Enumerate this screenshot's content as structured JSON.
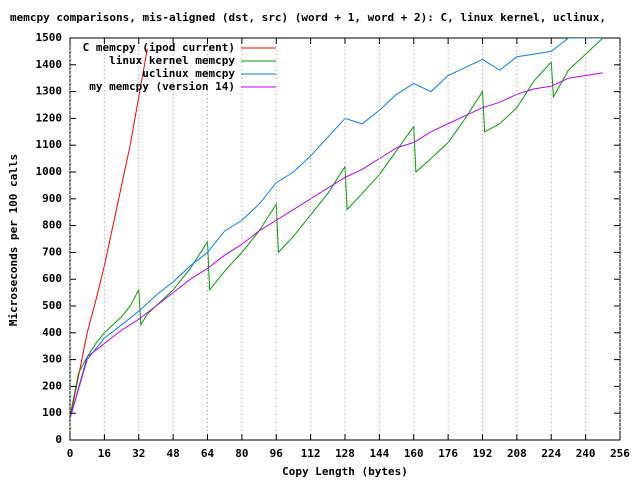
{
  "chart_data": {
    "type": "line",
    "title": "memcpy comparisons, mis-aligned (dst, src) (word + 1, word + 2): C, linux kernel, uclinux,",
    "xlabel": "Copy Length (bytes)",
    "ylabel": "Microseconds per 100 calls",
    "xlim": [
      0,
      256
    ],
    "ylim": [
      0,
      1500
    ],
    "xticks": [
      0,
      16,
      32,
      48,
      64,
      80,
      96,
      112,
      128,
      144,
      160,
      176,
      192,
      208,
      224,
      240,
      256
    ],
    "yticks": [
      0,
      100,
      200,
      300,
      400,
      500,
      600,
      700,
      800,
      900,
      1000,
      1100,
      1200,
      1300,
      1400,
      1500
    ],
    "xgrid": true,
    "legend": "top-left",
    "series": [
      {
        "name": "C memcpy (ipod current)",
        "color": "#ff0000",
        "x": [
          0,
          4,
          8,
          12,
          16,
          20,
          24,
          28,
          32,
          36
        ],
        "values": [
          80,
          240,
          400,
          520,
          650,
          800,
          950,
          1100,
          1280,
          1460
        ]
      },
      {
        "name": "linux kernel memcpy",
        "color": "#00a000",
        "x": [
          0,
          4,
          8,
          12,
          16,
          20,
          24,
          28,
          32,
          33,
          36,
          40,
          48,
          56,
          64,
          65,
          72,
          80,
          88,
          96,
          97,
          104,
          112,
          120,
          128,
          129,
          136,
          144,
          152,
          160,
          161,
          168,
          176,
          184,
          192,
          193,
          200,
          208,
          216,
          224,
          225,
          232,
          240,
          248
        ],
        "values": [
          90,
          250,
          310,
          360,
          400,
          430,
          460,
          500,
          560,
          430,
          470,
          500,
          560,
          640,
          740,
          560,
          630,
          700,
          780,
          880,
          700,
          760,
          840,
          920,
          1020,
          860,
          920,
          990,
          1080,
          1170,
          1000,
          1050,
          1110,
          1200,
          1300,
          1150,
          1180,
          1240,
          1340,
          1410,
          1280,
          1380,
          1440,
          1500
        ]
      },
      {
        "name": "uclinux memcpy",
        "color": "#0080ff",
        "x": [
          0,
          8,
          16,
          24,
          32,
          40,
          48,
          56,
          64,
          72,
          80,
          88,
          96,
          104,
          112,
          120,
          128,
          136,
          144,
          152,
          160,
          168,
          176,
          184,
          192,
          200,
          208,
          216,
          224,
          232,
          240,
          248
        ],
        "values": [
          80,
          300,
          380,
          430,
          480,
          540,
          590,
          650,
          700,
          780,
          820,
          880,
          960,
          1000,
          1060,
          1130,
          1200,
          1180,
          1230,
          1290,
          1330,
          1300,
          1360,
          1390,
          1420,
          1380,
          1430,
          1440,
          1450,
          1500,
          1500,
          1500
        ]
      },
      {
        "name": "my memcpy (version 14)",
        "color": "#c000ff",
        "x": [
          0,
          8,
          16,
          24,
          32,
          40,
          48,
          56,
          64,
          72,
          80,
          88,
          96,
          104,
          112,
          120,
          128,
          136,
          144,
          152,
          160,
          168,
          176,
          184,
          192,
          200,
          208,
          216,
          224,
          232,
          240,
          248
        ],
        "values": [
          80,
          310,
          360,
          410,
          450,
          500,
          550,
          600,
          640,
          690,
          730,
          780,
          820,
          860,
          900,
          940,
          980,
          1010,
          1050,
          1090,
          1110,
          1150,
          1180,
          1210,
          1240,
          1260,
          1290,
          1310,
          1320,
          1350,
          1360,
          1370
        ]
      }
    ]
  }
}
